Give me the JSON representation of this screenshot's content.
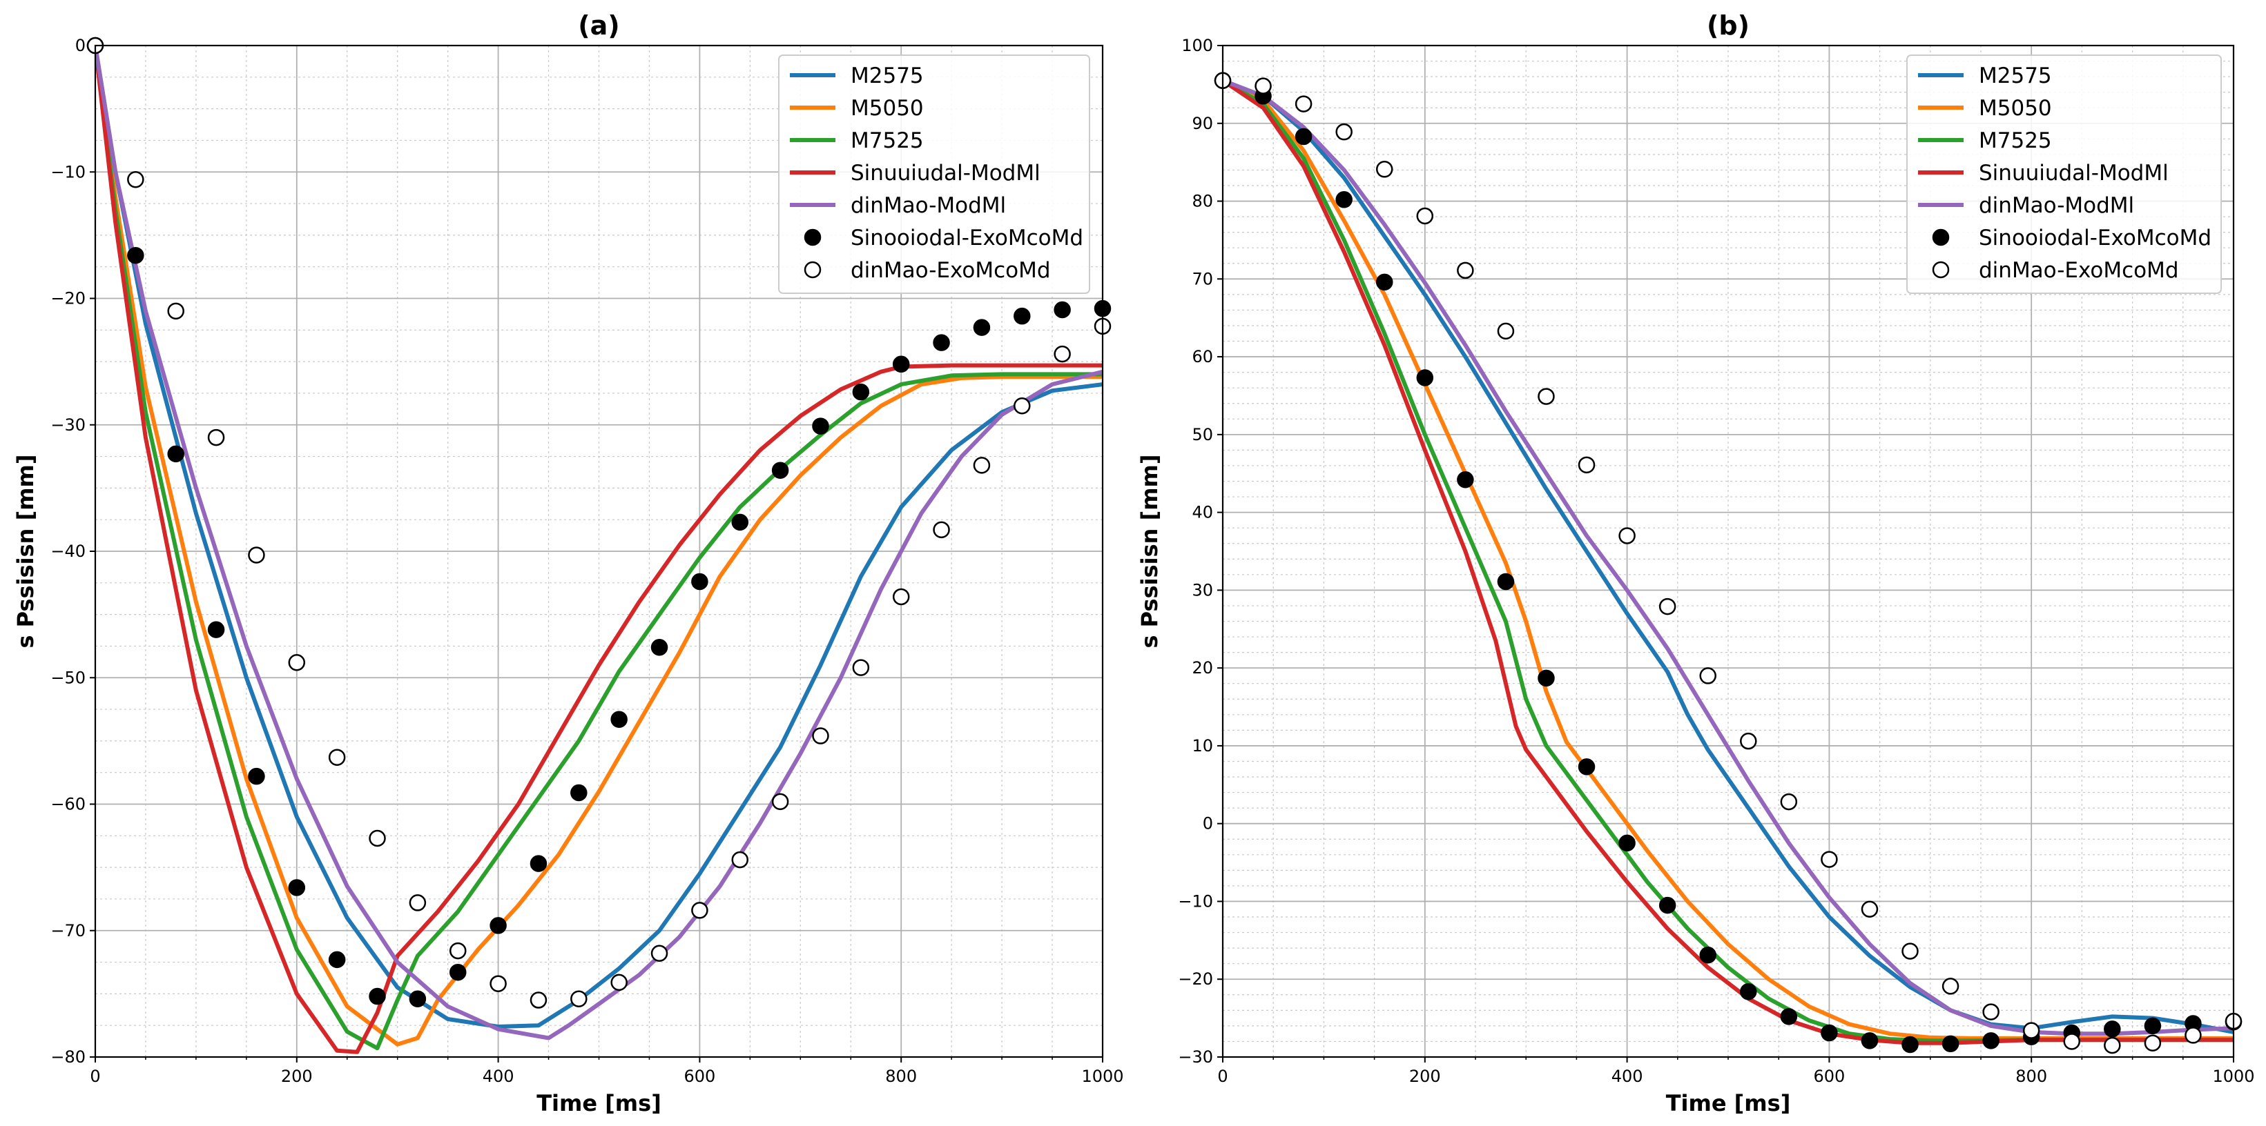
{
  "chart_data": [
    {
      "type": "line",
      "title": "(a)",
      "xlabel": "Time [ms]",
      "ylabel": "s Pssisisn [mm]",
      "xlim": [
        0,
        1000
      ],
      "ylim": [
        -80,
        0
      ],
      "xticks": [
        0,
        200,
        400,
        600,
        800,
        1000
      ],
      "yticks": [
        -80,
        -70,
        -60,
        -50,
        -40,
        -30,
        -20,
        -10,
        0
      ],
      "grid": true,
      "legend": "top-right",
      "series": [
        {
          "name": "M2575",
          "kind": "line",
          "color": "#1f77b4",
          "x": [
            0,
            20,
            50,
            100,
            150,
            200,
            250,
            300,
            350,
            400,
            440,
            480,
            520,
            560,
            600,
            640,
            680,
            720,
            760,
            800,
            850,
            900,
            950,
            1000
          ],
          "y": [
            0,
            -10,
            -22,
            -37,
            -50,
            -61,
            -69,
            -74.5,
            -77,
            -77.6,
            -77.5,
            -75.5,
            -73,
            -70,
            -65.5,
            -60.5,
            -55.5,
            -49,
            -42,
            -36.5,
            -32,
            -29,
            -27.3,
            -26.8
          ]
        },
        {
          "name": "M5050",
          "kind": "line",
          "color": "#ff7f0e",
          "x": [
            0,
            20,
            50,
            100,
            150,
            200,
            250,
            300,
            320,
            340,
            380,
            420,
            460,
            500,
            540,
            580,
            620,
            660,
            700,
            740,
            780,
            820,
            860,
            900,
            1000
          ],
          "y": [
            0,
            -12,
            -27,
            -44,
            -58,
            -69,
            -76,
            -79,
            -78.5,
            -75.5,
            -71.5,
            -68,
            -64,
            -59,
            -53.5,
            -48,
            -42,
            -37.5,
            -34,
            -31,
            -28.5,
            -26.8,
            -26.3,
            -26.2,
            -26.2
          ]
        },
        {
          "name": "M7525",
          "kind": "line",
          "color": "#2ca02c",
          "x": [
            0,
            20,
            50,
            100,
            150,
            200,
            250,
            280,
            300,
            320,
            360,
            400,
            440,
            480,
            520,
            560,
            600,
            640,
            680,
            720,
            760,
            800,
            850,
            900,
            1000
          ],
          "y": [
            0,
            -13,
            -29,
            -47,
            -61,
            -71.5,
            -78,
            -79.3,
            -75.5,
            -72,
            -68.5,
            -64,
            -59.5,
            -55,
            -49.5,
            -45,
            -40.5,
            -36.5,
            -33.5,
            -30.8,
            -28.3,
            -26.8,
            -26.1,
            -26,
            -26
          ]
        },
        {
          "name": "Sinuuiudal-ModMl",
          "kind": "line",
          "color": "#d62728",
          "x": [
            0,
            20,
            50,
            100,
            150,
            200,
            240,
            260,
            280,
            300,
            340,
            380,
            420,
            460,
            500,
            540,
            580,
            620,
            660,
            700,
            740,
            780,
            800,
            850,
            1000
          ],
          "y": [
            0,
            -14,
            -31,
            -51,
            -65,
            -75,
            -79.5,
            -79.6,
            -76.5,
            -72,
            -68.5,
            -64.5,
            -60,
            -54.5,
            -49,
            -44,
            -39.5,
            -35.5,
            -32,
            -29.3,
            -27.2,
            -25.8,
            -25.4,
            -25.3,
            -25.3
          ]
        },
        {
          "name": "dinMao-ModMl",
          "kind": "line",
          "color": "#9467bd",
          "x": [
            0,
            20,
            50,
            100,
            150,
            200,
            250,
            300,
            350,
            400,
            450,
            470,
            500,
            540,
            580,
            620,
            660,
            700,
            740,
            780,
            820,
            860,
            900,
            950,
            1000
          ],
          "y": [
            0,
            -10,
            -21,
            -35,
            -47.5,
            -58,
            -66.5,
            -72.5,
            -76,
            -77.8,
            -78.5,
            -77.5,
            -75.8,
            -73.5,
            -70.5,
            -66.5,
            -61.5,
            -56,
            -50,
            -43,
            -37,
            -32.5,
            -29.2,
            -26.8,
            -25.8
          ]
        },
        {
          "name": "Sinooiodal-ExoMcoMd",
          "kind": "filled-marker",
          "color": "#000000",
          "x": [
            0,
            40,
            80,
            120,
            160,
            200,
            240,
            280,
            320,
            360,
            400,
            440,
            480,
            520,
            560,
            600,
            640,
            680,
            720,
            760,
            800,
            840,
            880,
            920,
            960,
            1000
          ],
          "y": [
            0,
            -16.6,
            -32.3,
            -46.2,
            -57.8,
            -66.6,
            -72.3,
            -75.2,
            -75.4,
            -73.3,
            -69.6,
            -64.7,
            -59.1,
            -53.3,
            -47.6,
            -42.4,
            -37.7,
            -33.6,
            -30.1,
            -27.4,
            -25.2,
            -23.5,
            -22.3,
            -21.4,
            -20.9,
            -20.8
          ]
        },
        {
          "name": "dinMao-ExoMcoMd",
          "kind": "open-marker",
          "color": "#000000",
          "x": [
            0,
            40,
            80,
            120,
            160,
            200,
            240,
            280,
            320,
            360,
            400,
            440,
            480,
            520,
            560,
            600,
            640,
            680,
            720,
            760,
            800,
            840,
            880,
            920,
            960,
            1000
          ],
          "y": [
            0,
            -10.6,
            -21,
            -31,
            -40.3,
            -48.8,
            -56.3,
            -62.7,
            -67.8,
            -71.6,
            -74.2,
            -75.5,
            -75.4,
            -74.1,
            -71.8,
            -68.4,
            -64.4,
            -59.8,
            -54.6,
            -49.2,
            -43.6,
            -38.3,
            -33.2,
            -28.5,
            -24.4,
            -22.2
          ]
        }
      ]
    },
    {
      "type": "line",
      "title": "(b)",
      "xlabel": "Time [ms]",
      "ylabel": "s Pssisisn [mm]",
      "xlim": [
        0,
        1000
      ],
      "ylim": [
        -30,
        100
      ],
      "xticks": [
        0,
        200,
        400,
        600,
        800,
        1000
      ],
      "yticks": [
        -30,
        -20,
        -10,
        0,
        10,
        20,
        30,
        40,
        50,
        60,
        70,
        80,
        90,
        100
      ],
      "grid": true,
      "legend": "top-right",
      "series": [
        {
          "name": "M2575",
          "kind": "line",
          "color": "#1f77b4",
          "x": [
            0,
            40,
            80,
            120,
            160,
            200,
            240,
            280,
            320,
            360,
            400,
            440,
            460,
            480,
            520,
            560,
            600,
            640,
            680,
            720,
            760,
            800,
            840,
            880,
            920,
            960,
            1000
          ],
          "y": [
            95.5,
            93.5,
            89,
            83,
            75.5,
            68,
            60,
            51.5,
            43,
            35,
            27,
            19.5,
            14,
            9.5,
            2,
            -5.5,
            -12,
            -17,
            -21,
            -24,
            -25.8,
            -26.3,
            -25.5,
            -24.8,
            -25,
            -25.8,
            -26.8
          ]
        },
        {
          "name": "M5050",
          "kind": "line",
          "color": "#ff7f0e",
          "x": [
            0,
            40,
            80,
            120,
            160,
            200,
            240,
            280,
            300,
            320,
            340,
            380,
            420,
            460,
            500,
            540,
            580,
            620,
            660,
            700,
            740,
            800,
            1000
          ],
          "y": [
            95.5,
            93,
            86.5,
            77.5,
            68,
            56.5,
            45,
            33.5,
            26,
            17,
            10.5,
            3.5,
            -3.5,
            -10,
            -15.5,
            -20,
            -23.5,
            -25.8,
            -27,
            -27.5,
            -27.6,
            -27.6,
            -27.6
          ]
        },
        {
          "name": "M7525",
          "kind": "line",
          "color": "#2ca02c",
          "x": [
            0,
            40,
            80,
            120,
            160,
            200,
            240,
            280,
            300,
            320,
            340,
            380,
            420,
            460,
            500,
            540,
            580,
            620,
            660,
            700,
            740,
            800,
            1000
          ],
          "y": [
            95.5,
            92.5,
            85.5,
            75,
            63,
            50,
            38,
            26,
            16,
            10,
            6.5,
            -0.5,
            -7.5,
            -13.5,
            -18.5,
            -22.5,
            -25.3,
            -27,
            -27.7,
            -27.9,
            -27.9,
            -27.8,
            -27.8
          ]
        },
        {
          "name": "Sinuuiudal-ModMl",
          "kind": "line",
          "color": "#d62728",
          "x": [
            0,
            40,
            80,
            120,
            160,
            200,
            240,
            270,
            290,
            300,
            320,
            360,
            400,
            440,
            480,
            520,
            560,
            600,
            640,
            680,
            720,
            760,
            800,
            1000
          ],
          "y": [
            95.5,
            92,
            84.5,
            73.5,
            61.5,
            48,
            35,
            23.5,
            12.5,
            9.5,
            6,
            -1,
            -7.5,
            -13.5,
            -18.5,
            -22.5,
            -25.3,
            -27,
            -27.8,
            -28.2,
            -28.2,
            -28,
            -27.8,
            -27.8
          ]
        },
        {
          "name": "dinMao-ModMl",
          "kind": "line",
          "color": "#9467bd",
          "x": [
            0,
            40,
            80,
            120,
            160,
            200,
            240,
            280,
            320,
            360,
            400,
            440,
            480,
            520,
            560,
            600,
            640,
            680,
            720,
            760,
            800,
            840,
            880,
            920,
            960,
            1000
          ],
          "y": [
            95.5,
            93.5,
            89.5,
            84,
            77,
            69.5,
            61.5,
            53,
            45,
            37,
            30,
            22.5,
            14,
            5.5,
            -2.5,
            -9.5,
            -15.5,
            -20.5,
            -24,
            -26,
            -26.8,
            -27,
            -27,
            -26.8,
            -26.5,
            -26.3
          ]
        },
        {
          "name": "Sinooiodal-ExoMcoMd",
          "kind": "filled-marker",
          "color": "#000000",
          "x": [
            0,
            40,
            80,
            120,
            160,
            200,
            240,
            280,
            320,
            360,
            400,
            440,
            480,
            520,
            560,
            600,
            640,
            680,
            720,
            760,
            800,
            840,
            880,
            920,
            960,
            1000
          ],
          "y": [
            95.5,
            93.5,
            88.3,
            80.2,
            69.6,
            57.3,
            44.2,
            31.1,
            18.7,
            7.3,
            -2.5,
            -10.5,
            -16.9,
            -21.6,
            -24.8,
            -26.9,
            -27.9,
            -28.4,
            -28.3,
            -27.9,
            -27.4,
            -26.9,
            -26.4,
            -26,
            -25.7,
            -25.5
          ]
        },
        {
          "name": "dinMao-ExoMcoMd",
          "kind": "open-marker",
          "color": "#000000",
          "x": [
            0,
            40,
            80,
            120,
            160,
            200,
            240,
            280,
            320,
            360,
            400,
            440,
            480,
            520,
            560,
            600,
            640,
            680,
            720,
            760,
            800,
            840,
            880,
            920,
            960,
            1000
          ],
          "y": [
            95.5,
            94.8,
            92.5,
            88.9,
            84.1,
            78.1,
            71.1,
            63.3,
            54.9,
            46.1,
            37,
            27.9,
            19,
            10.6,
            2.8,
            -4.6,
            -11,
            -16.4,
            -20.9,
            -24.2,
            -26.6,
            -28,
            -28.5,
            -28.2,
            -27.2,
            -25.4
          ]
        }
      ]
    }
  ]
}
